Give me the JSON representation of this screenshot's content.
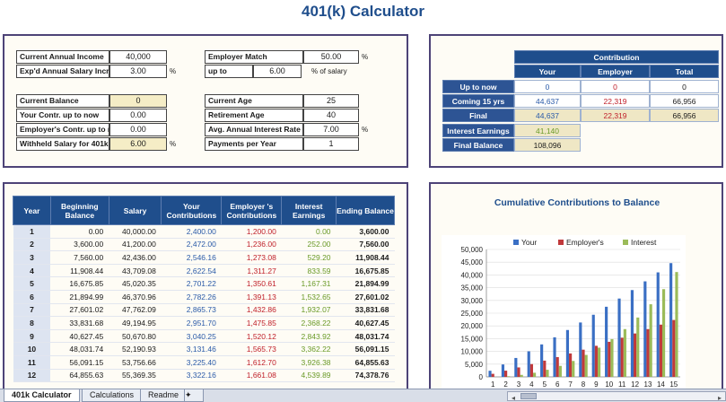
{
  "title": "401(k) Calculator",
  "inputs": {
    "current_annual_income": {
      "label": "Current Annual Income",
      "value": "40,000"
    },
    "salary_increase": {
      "label": "Exp'd Annual Salary Incre",
      "value": "3.00",
      "unit": "%"
    },
    "current_balance": {
      "label": "Current Balance",
      "value": "0"
    },
    "your_contr": {
      "label": "Your Contr. up to now",
      "value": "0.00"
    },
    "employer_contr": {
      "label": "Employer's Contr. up to n",
      "value": "0.00"
    },
    "withheld_salary": {
      "label": "Withheld Salary for 401k",
      "value": "6.00",
      "unit": "%"
    },
    "employer_match": {
      "label": "Employer Match",
      "value": "50.00",
      "unit": "%"
    },
    "up_to": {
      "label": "up to",
      "value": "6.00",
      "unit": "% of salary"
    },
    "current_age": {
      "label": "Current Age",
      "value": "25"
    },
    "retirement_age": {
      "label": "Retirement Age",
      "value": "40"
    },
    "interest_rate": {
      "label": "Avg. Annual Interest Rate",
      "value": "7.00",
      "unit": "%"
    },
    "payments_per_year": {
      "label": "Payments per Year",
      "value": "1"
    }
  },
  "contribution": {
    "header": "Contribution",
    "cols": [
      "Your",
      "Employer",
      "Total"
    ],
    "rows": [
      {
        "label": "Up to now",
        "your": "0",
        "employer": "0",
        "total": "0"
      },
      {
        "label": "Coming 15 yrs",
        "your": "44,637",
        "employer": "22,319",
        "total": "66,956"
      },
      {
        "label": "Final",
        "your": "44,637",
        "employer": "22,319",
        "total": "66,956"
      }
    ],
    "interest_label": "Interest Earnings",
    "interest_value": "41,140",
    "final_balance_label": "Final Balance",
    "final_balance_value": "108,096"
  },
  "schedule": {
    "headers": [
      "Year",
      "Beginning Balance",
      "Salary",
      "Your Contributions",
      "Employer 's Contributions",
      "Interest Earnings",
      "Ending Balance"
    ],
    "rows": [
      [
        "1",
        "0.00",
        "40,000.00",
        "2,400.00",
        "1,200.00",
        "0.00",
        "3,600.00"
      ],
      [
        "2",
        "3,600.00",
        "41,200.00",
        "2,472.00",
        "1,236.00",
        "252.00",
        "7,560.00"
      ],
      [
        "3",
        "7,560.00",
        "42,436.00",
        "2,546.16",
        "1,273.08",
        "529.20",
        "11,908.44"
      ],
      [
        "4",
        "11,908.44",
        "43,709.08",
        "2,622.54",
        "1,311.27",
        "833.59",
        "16,675.85"
      ],
      [
        "5",
        "16,675.85",
        "45,020.35",
        "2,701.22",
        "1,350.61",
        "1,167.31",
        "21,894.99"
      ],
      [
        "6",
        "21,894.99",
        "46,370.96",
        "2,782.26",
        "1,391.13",
        "1,532.65",
        "27,601.02"
      ],
      [
        "7",
        "27,601.02",
        "47,762.09",
        "2,865.73",
        "1,432.86",
        "1,932.07",
        "33,831.68"
      ],
      [
        "8",
        "33,831.68",
        "49,194.95",
        "2,951.70",
        "1,475.85",
        "2,368.22",
        "40,627.45"
      ],
      [
        "9",
        "40,627.45",
        "50,670.80",
        "3,040.25",
        "1,520.12",
        "2,843.92",
        "48,031.74"
      ],
      [
        "10",
        "48,031.74",
        "52,190.93",
        "3,131.46",
        "1,565.73",
        "3,362.22",
        "56,091.15"
      ],
      [
        "11",
        "56,091.15",
        "53,756.66",
        "3,225.40",
        "1,612.70",
        "3,926.38",
        "64,855.63"
      ],
      [
        "12",
        "64,855.63",
        "55,369.35",
        "3,322.16",
        "1,661.08",
        "4,539.89",
        "74,378.76"
      ]
    ]
  },
  "chart_data": {
    "type": "bar",
    "title": "Cumulative Contributions to Balance",
    "categories": [
      "1",
      "2",
      "3",
      "4",
      "5",
      "6",
      "7",
      "8",
      "9",
      "10",
      "11",
      "12",
      "13",
      "14",
      "15"
    ],
    "series": [
      {
        "name": "Your",
        "color": "#3a6fc4",
        "values": [
          2400,
          4872,
          7418,
          10041,
          12742,
          15524,
          18390,
          21342,
          24382,
          27513,
          30739,
          34061,
          37482,
          41006,
          44637
        ]
      },
      {
        "name": "Employer's",
        "color": "#c0393b",
        "values": [
          1200,
          2436,
          3709,
          5020,
          6371,
          7762,
          9195,
          10671,
          12191,
          13757,
          15369,
          17030,
          18741,
          20503,
          22319
        ]
      },
      {
        "name": "Interest",
        "color": "#9bbb59",
        "values": [
          0,
          252,
          781,
          1615,
          2782,
          4315,
          6247,
          8615,
          11459,
          14821,
          18748,
          23287,
          28492,
          34420,
          41140
        ]
      }
    ],
    "ylim": [
      0,
      50000
    ],
    "yticks": [
      "0",
      "5,000",
      "10,000",
      "15,000",
      "20,000",
      "25,000",
      "30,000",
      "35,000",
      "40,000",
      "45,000",
      "50,000"
    ],
    "legend": "top"
  },
  "sheet_tabs": [
    "401k Calculator",
    "Calculations",
    "Readme"
  ]
}
